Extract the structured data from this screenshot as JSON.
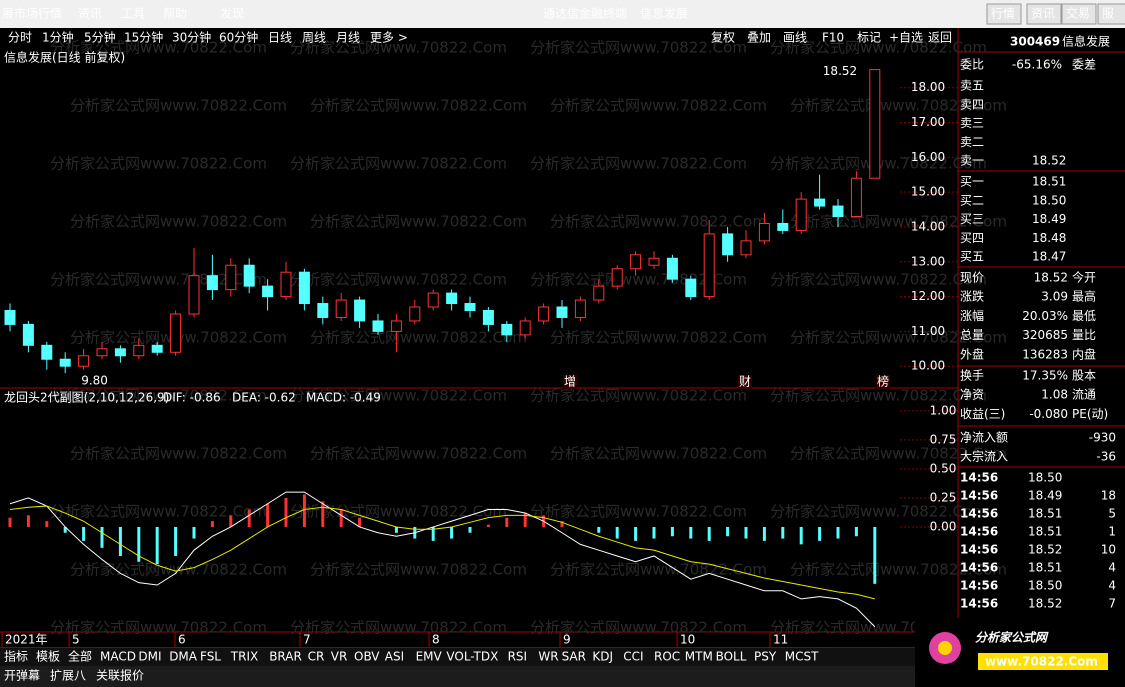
{
  "menu": {
    "left": [
      "展市场行情",
      "资讯",
      "工具",
      "帮助",
      "发现"
    ],
    "center": [
      "通达信金融终端",
      "信息发展"
    ],
    "right": [
      "行情",
      "资讯",
      "交易",
      "服"
    ]
  },
  "toolbar": {
    "periods": [
      "分时",
      "1分钟",
      "5分钟",
      "15分钟",
      "30分钟",
      "60分钟",
      "日线",
      "周线",
      "月线",
      "更多 >"
    ],
    "actions": [
      "复权",
      "叠加",
      "画线",
      "F10",
      "标记",
      "+自选",
      "返回"
    ]
  },
  "watermark": "分析家公式网www.70822.Com",
  "price_chart": {
    "title": "信息发展(日线 前复权)",
    "ylim": [
      9.46,
      19.14
    ],
    "yticks": [
      {
        "value": 10,
        "label": "10.00"
      },
      {
        "value": 11,
        "label": "11.00"
      },
      {
        "value": 12,
        "label": "12.00"
      },
      {
        "value": 13,
        "label": "13.00"
      },
      {
        "value": 14,
        "label": "14.00"
      },
      {
        "value": 15,
        "label": "15.00"
      },
      {
        "value": 16,
        "label": "16.00"
      },
      {
        "value": 17,
        "label": "17.00"
      },
      {
        "value": 18,
        "label": "18.00"
      }
    ],
    "up_color": "#ff3232",
    "down_color": "#54ffff",
    "candles": [
      [
        11.6,
        11.2,
        11.8,
        11.0
      ],
      [
        11.2,
        10.6,
        11.3,
        10.4
      ],
      [
        10.6,
        10.2,
        10.7,
        9.9
      ],
      [
        10.2,
        10.0,
        10.4,
        9.8
      ],
      [
        10.0,
        10.3,
        10.5,
        9.9
      ],
      [
        10.3,
        10.5,
        10.7,
        10.2
      ],
      [
        10.5,
        10.3,
        10.6,
        10.1
      ],
      [
        10.3,
        10.6,
        10.8,
        10.2
      ],
      [
        10.6,
        10.4,
        10.7,
        10.3
      ],
      [
        10.4,
        11.5,
        11.6,
        10.3
      ],
      [
        11.5,
        12.6,
        13.4,
        11.4
      ],
      [
        12.6,
        12.2,
        13.2,
        11.9
      ],
      [
        12.2,
        12.9,
        13.1,
        12.0
      ],
      [
        12.9,
        12.3,
        13.1,
        12.1
      ],
      [
        12.3,
        12.0,
        12.5,
        11.6
      ],
      [
        12.0,
        12.7,
        13.0,
        11.9
      ],
      [
        12.7,
        11.8,
        12.8,
        11.6
      ],
      [
        11.8,
        11.4,
        12.0,
        11.2
      ],
      [
        11.4,
        11.9,
        12.1,
        11.3
      ],
      [
        11.9,
        11.3,
        12.0,
        11.1
      ],
      [
        11.3,
        11.0,
        11.5,
        10.9
      ],
      [
        11.0,
        11.3,
        11.5,
        10.4
      ],
      [
        11.3,
        11.7,
        11.9,
        11.2
      ],
      [
        11.7,
        12.1,
        12.2,
        11.6
      ],
      [
        12.1,
        11.8,
        12.2,
        11.6
      ],
      [
        11.8,
        11.6,
        12.0,
        11.4
      ],
      [
        11.6,
        11.2,
        11.7,
        11.0
      ],
      [
        11.2,
        10.9,
        11.3,
        10.7
      ],
      [
        10.9,
        11.3,
        11.4,
        10.8
      ],
      [
        11.3,
        11.7,
        11.8,
        11.2
      ],
      [
        11.7,
        11.4,
        11.9,
        11.1
      ],
      [
        11.4,
        11.9,
        12.0,
        11.3
      ],
      [
        11.9,
        12.3,
        12.5,
        11.8
      ],
      [
        12.3,
        12.8,
        12.9,
        12.2
      ],
      [
        12.8,
        13.2,
        13.3,
        12.6
      ],
      [
        12.9,
        13.1,
        13.3,
        12.8
      ],
      [
        13.1,
        12.5,
        13.2,
        12.4
      ],
      [
        12.5,
        12.0,
        12.6,
        11.9
      ],
      [
        12.0,
        13.8,
        14.2,
        11.9
      ],
      [
        13.8,
        13.2,
        14.0,
        13.0
      ],
      [
        13.2,
        13.6,
        13.9,
        13.1
      ],
      [
        13.6,
        14.1,
        14.4,
        13.5
      ],
      [
        14.1,
        13.9,
        14.5,
        13.8
      ],
      [
        13.9,
        14.8,
        15.0,
        13.8
      ],
      [
        14.8,
        14.6,
        15.5,
        14.5
      ],
      [
        14.6,
        14.3,
        14.8,
        14.0
      ],
      [
        14.3,
        15.4,
        15.6,
        14.3
      ],
      [
        15.4,
        18.52,
        18.52,
        15.4
      ]
    ],
    "high_label": "18.52",
    "low_label": "9.80",
    "markers": [
      "增",
      "财",
      "榜"
    ]
  },
  "macd_chart": {
    "legend": {
      "name": "龙回头2代副图(2,10,12,26,9)",
      "dif": "DIF: -0.86",
      "dea": "DEA: -0.62",
      "macd": "MACD: -0.49"
    },
    "ylim": [
      -0.905,
      1.18
    ],
    "yticks": [
      {
        "value": 0,
        "label": "0.00"
      },
      {
        "value": 0.25,
        "label": "0.25"
      },
      {
        "value": 0.5,
        "label": "0.50"
      },
      {
        "value": 0.75,
        "label": "0.75"
      },
      {
        "value": 1,
        "label": "1.00"
      }
    ],
    "hist": [
      0.08,
      0.1,
      0.05,
      -0.05,
      -0.12,
      -0.18,
      -0.25,
      -0.3,
      -0.32,
      -0.25,
      -0.1,
      0.05,
      0.1,
      0.15,
      0.2,
      0.25,
      0.28,
      0.22,
      0.15,
      0.08,
      0,
      -0.05,
      -0.1,
      -0.12,
      -0.1,
      -0.05,
      0.02,
      0.08,
      0.12,
      0.1,
      0.05,
      0,
      -0.05,
      -0.1,
      -0.12,
      -0.1,
      -0.08,
      -0.1,
      -0.12,
      -0.08,
      -0.1,
      -0.12,
      -0.1,
      -0.15,
      -0.12,
      -0.1,
      -0.08,
      -0.49
    ],
    "dif": [
      0.2,
      0.25,
      0.18,
      0.0,
      -0.15,
      -0.28,
      -0.4,
      -0.48,
      -0.5,
      -0.4,
      -0.2,
      -0.08,
      0,
      0.1,
      0.2,
      0.3,
      0.3,
      0.2,
      0.1,
      0,
      -0.05,
      -0.08,
      -0.05,
      0.0,
      0.05,
      0.1,
      0.15,
      0.15,
      0.12,
      0.05,
      -0.05,
      -0.15,
      -0.2,
      -0.25,
      -0.3,
      -0.25,
      -0.35,
      -0.45,
      -0.4,
      -0.45,
      -0.5,
      -0.55,
      -0.55,
      -0.62,
      -0.6,
      -0.62,
      -0.7,
      -0.86
    ],
    "dea": [
      0.15,
      0.17,
      0.18,
      0.12,
      0.05,
      -0.05,
      -0.15,
      -0.25,
      -0.33,
      -0.38,
      -0.35,
      -0.28,
      -0.2,
      -0.1,
      0,
      0.08,
      0.15,
      0.17,
      0.15,
      0.1,
      0.05,
      0,
      -0.02,
      -0.02,
      0,
      0.04,
      0.08,
      0.1,
      0.1,
      0.08,
      0.04,
      -0.02,
      -0.08,
      -0.13,
      -0.18,
      -0.2,
      -0.25,
      -0.3,
      -0.32,
      -0.36,
      -0.4,
      -0.44,
      -0.47,
      -0.5,
      -0.53,
      -0.56,
      -0.58,
      -0.62
    ]
  },
  "dates": [
    "2021年",
    "5",
    "6",
    "7",
    "8",
    "9",
    "10",
    "11"
  ],
  "tabs": [
    "指标",
    "模板",
    "全部",
    "MACD",
    "DMI",
    "DMA",
    "FSL",
    "TRIX",
    "BRAR",
    "CR",
    "VR",
    "OBV",
    "ASI",
    "EMV",
    "VOL-TDX",
    "RSI",
    "WR",
    "SAR",
    "KDJ",
    "CCI",
    "ROC",
    "MTM",
    "BOLL",
    "PSY",
    "MCST"
  ],
  "bottom": [
    "开弹幕",
    "扩展八",
    "关联报价"
  ],
  "quote": {
    "code": "300469",
    "name": "信息发展",
    "weibi_label": "委比",
    "weibi": "-65.16%",
    "weicha_label": "委差",
    "sell": [
      {
        "label": "卖五"
      },
      {
        "label": "卖四"
      },
      {
        "label": "卖三"
      },
      {
        "label": "卖二"
      },
      {
        "label": "卖一",
        "price": "18.52"
      }
    ],
    "buy": [
      {
        "label": "买一",
        "price": "18.51"
      },
      {
        "label": "买二",
        "price": "18.50"
      },
      {
        "label": "买三",
        "price": "18.49"
      },
      {
        "label": "买四",
        "price": "18.48"
      },
      {
        "label": "买五",
        "price": "18.47"
      }
    ],
    "stats": [
      {
        "label": "现价",
        "value": "18.52",
        "label2": "今开",
        "color": "#ff3232"
      },
      {
        "label": "涨跌",
        "value": "3.09",
        "label2": "最高",
        "color": "#ff3232"
      },
      {
        "label": "涨幅",
        "value": "20.03%",
        "label2": "最低",
        "color": "#ff3232"
      },
      {
        "label": "总量",
        "value": "320685",
        "label2": "量比",
        "color": "#e8e800"
      },
      {
        "label": "外盘",
        "value": "136283",
        "label2": "内盘",
        "color": "#ff3232"
      },
      {
        "label": "换手",
        "value": "17.35%",
        "label2": "股本",
        "color": "#ffffff"
      },
      {
        "label": "净资",
        "value": "1.08",
        "label2": "流通",
        "color": "#ffffff"
      },
      {
        "label": "收益(三)",
        "value": "-0.080",
        "label2": "PE(动)",
        "color": "#ffffff"
      }
    ],
    "flow": [
      {
        "label": "净流入额",
        "value": "-930"
      },
      {
        "label": "大宗流入",
        "value": "-36"
      }
    ],
    "ticks": [
      {
        "time": "14:56",
        "price": "18.50"
      },
      {
        "time": "14:56",
        "price": "18.49",
        "vol": "18"
      },
      {
        "time": "14:56",
        "price": "18.51",
        "vol": "5"
      },
      {
        "time": "14:56",
        "price": "18.51",
        "vol": "1"
      },
      {
        "time": "14:56",
        "price": "18.52",
        "vol": "10"
      },
      {
        "time": "14:56",
        "price": "18.51",
        "vol": "4"
      },
      {
        "time": "14:56",
        "price": "18.50",
        "vol": "4"
      },
      {
        "time": "14:56",
        "price": "18.52",
        "vol": "7"
      }
    ]
  },
  "logo": {
    "brand": "分析家公式网",
    "url": "www.70822.Com"
  }
}
